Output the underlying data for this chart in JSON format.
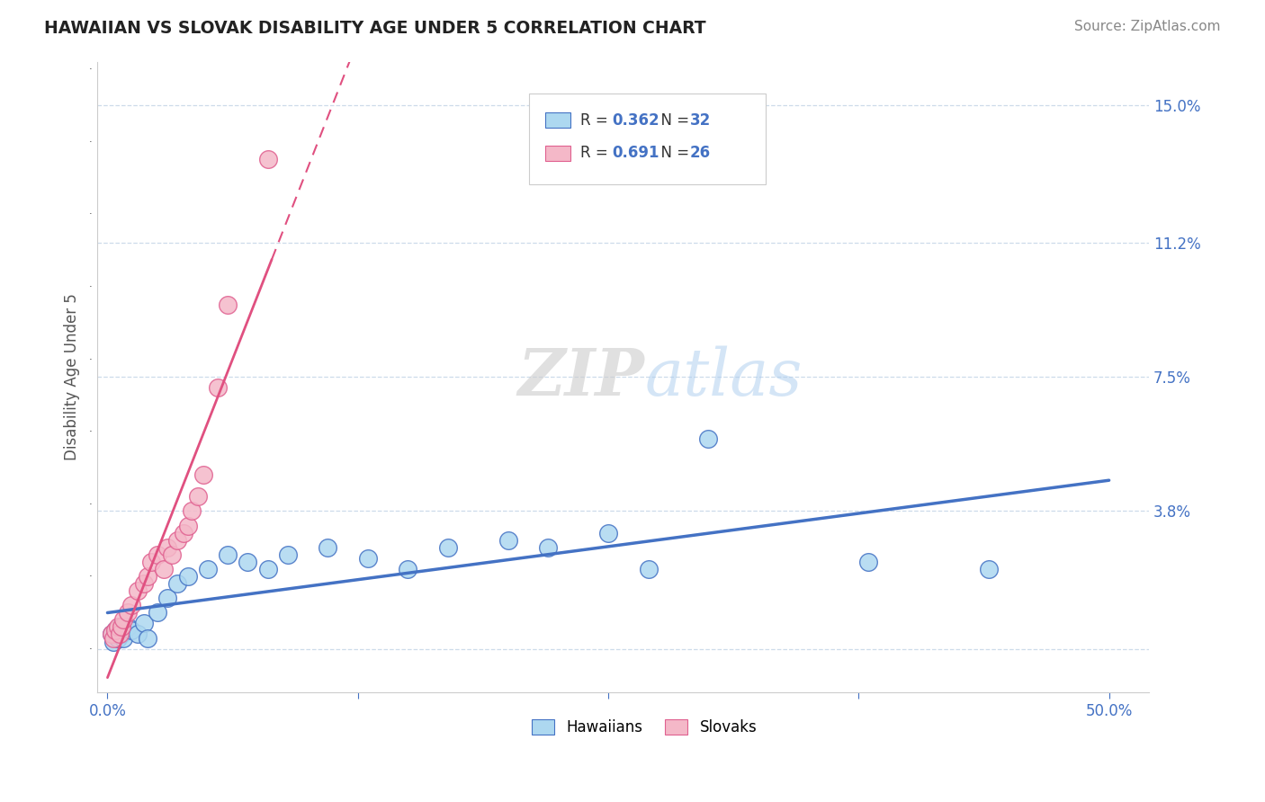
{
  "title": "HAWAIIAN VS SLOVAK DISABILITY AGE UNDER 5 CORRELATION CHART",
  "source": "Source: ZipAtlas.com",
  "ylabel": "Disability Age Under 5",
  "hawaiian_R": 0.362,
  "hawaiian_N": 32,
  "slovak_R": 0.691,
  "slovak_N": 26,
  "hawaiian_color": "#add8f0",
  "slovak_color": "#f4b8c8",
  "hawaiian_edge_color": "#4472C4",
  "slovak_edge_color": "#e06090",
  "hawaiian_line_color": "#4472C4",
  "slovak_line_color": "#e05080",
  "grid_color": "#c8d8e8",
  "watermark_color": "#d8e8f4",
  "xlim_low": -0.005,
  "xlim_high": 0.52,
  "ylim_low": -0.012,
  "ylim_high": 0.162,
  "y_ticks": [
    0.0,
    0.038,
    0.075,
    0.112,
    0.15
  ],
  "y_tick_labels": [
    "",
    "3.8%",
    "7.5%",
    "11.2%",
    "15.0%"
  ],
  "x_ticks": [
    0.0,
    0.125,
    0.25,
    0.375,
    0.5
  ],
  "x_tick_labels": [
    "0.0%",
    "",
    "",
    "",
    "50.0%"
  ],
  "hawaiian_x": [
    0.002,
    0.003,
    0.004,
    0.005,
    0.006,
    0.007,
    0.008,
    0.01,
    0.012,
    0.015,
    0.018,
    0.02,
    0.025,
    0.03,
    0.035,
    0.04,
    0.05,
    0.06,
    0.07,
    0.08,
    0.09,
    0.11,
    0.13,
    0.15,
    0.17,
    0.2,
    0.22,
    0.25,
    0.27,
    0.3,
    0.38,
    0.44
  ],
  "hawaiian_y": [
    0.004,
    0.002,
    0.005,
    0.003,
    0.006,
    0.004,
    0.003,
    0.006,
    0.005,
    0.004,
    0.007,
    0.003,
    0.01,
    0.014,
    0.018,
    0.02,
    0.022,
    0.026,
    0.024,
    0.022,
    0.026,
    0.028,
    0.025,
    0.022,
    0.028,
    0.03,
    0.028,
    0.032,
    0.022,
    0.058,
    0.024,
    0.022
  ],
  "slovak_x": [
    0.002,
    0.003,
    0.004,
    0.005,
    0.006,
    0.007,
    0.008,
    0.01,
    0.012,
    0.015,
    0.018,
    0.02,
    0.022,
    0.025,
    0.028,
    0.03,
    0.032,
    0.035,
    0.038,
    0.04,
    0.042,
    0.045,
    0.048,
    0.055,
    0.06,
    0.08
  ],
  "slovak_y": [
    0.004,
    0.003,
    0.005,
    0.006,
    0.004,
    0.006,
    0.008,
    0.01,
    0.012,
    0.016,
    0.018,
    0.02,
    0.024,
    0.026,
    0.022,
    0.028,
    0.026,
    0.03,
    0.032,
    0.034,
    0.038,
    0.042,
    0.048,
    0.072,
    0.095,
    0.135
  ]
}
